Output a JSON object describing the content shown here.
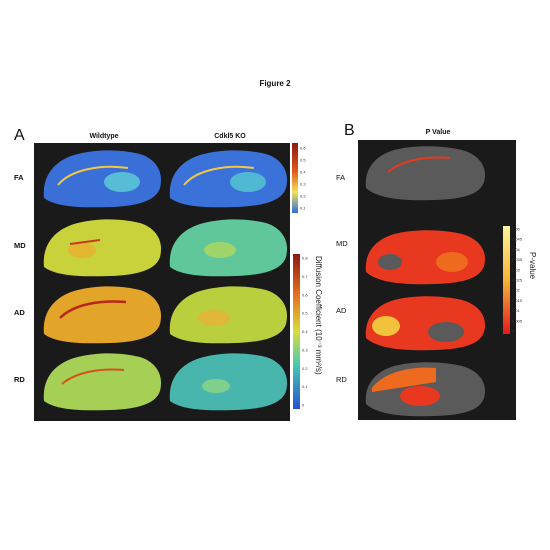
{
  "figure_title": "Figure 2",
  "panels": {
    "a": {
      "letter": "A",
      "columns": [
        "Wildtype",
        "Cdkl5 KO"
      ],
      "rows": [
        "FA",
        "MD",
        "AD",
        "RD"
      ],
      "fa_colorbar_ticks": [
        "0.6",
        "0.5",
        "0.4",
        "0.3",
        "0.2",
        "0.1"
      ],
      "diffusion_colorbar": {
        "label": "Diffusion Coefficient (10⁻³ mm²/s)",
        "ticks": [
          "0.8",
          "0.7",
          "0.6",
          "0.5",
          "0.4",
          "0.3",
          "0.2",
          "0.1",
          "0"
        ]
      }
    },
    "b": {
      "letter": "B",
      "title": "P Value",
      "rows": [
        "FA",
        "MD",
        "AD",
        "RD"
      ],
      "colorbar": {
        "label": "P-value",
        "ticks": [
          "0.05",
          "0.045",
          "0.04",
          "0.035",
          "0.03",
          "0.025",
          "0.02",
          "0.015",
          "0.01",
          "0.005",
          "0"
        ]
      }
    }
  },
  "colors": {
    "fa_blue": "#3a6fd8",
    "md_wildtype": "#c9d23a",
    "md_ko": "#5fc79a",
    "ad_wildtype": "#e2a52a",
    "ad_ko": "#b9cf3e",
    "rd_wildtype": "#a5cf55",
    "rd_ko": "#49b6ad",
    "p_red": "#e8381f",
    "p_orange": "#ee6a1f"
  }
}
